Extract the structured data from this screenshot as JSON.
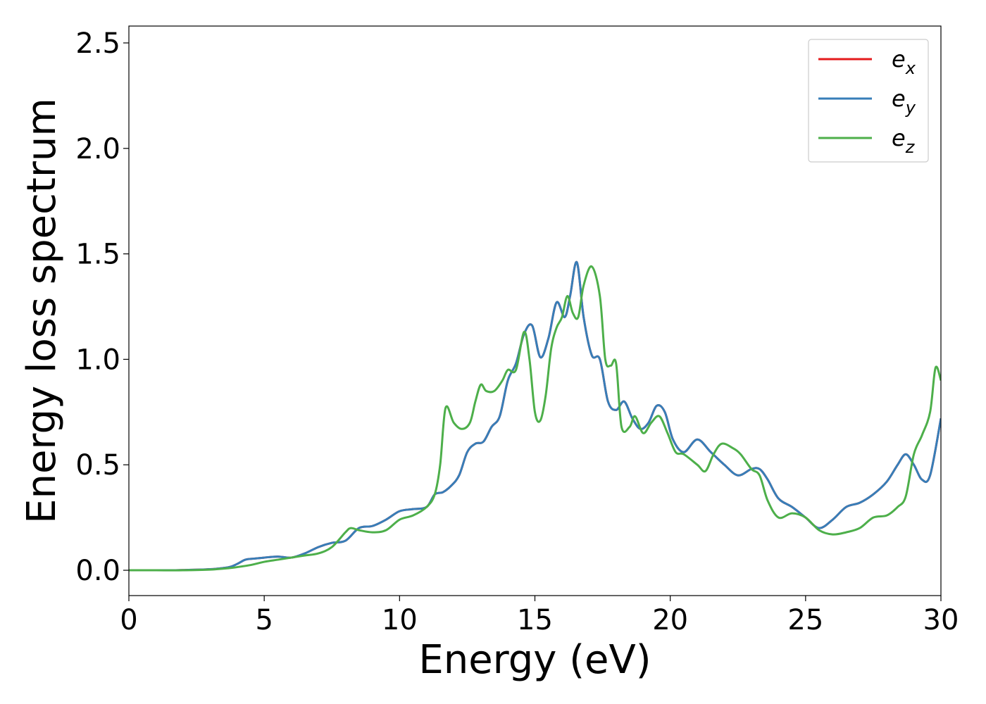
{
  "chart_data": {
    "type": "line",
    "title": "",
    "xlabel": "Energy (eV)",
    "ylabel": "Energy loss spectrum",
    "xlim": [
      0,
      30
    ],
    "ylim": [
      -0.12,
      2.58
    ],
    "xticks": [
      0,
      5,
      10,
      15,
      20,
      25,
      30
    ],
    "yticks": [
      0.0,
      0.5,
      1.0,
      1.5,
      2.0,
      2.5
    ],
    "grid": false,
    "legend_position": "top-right",
    "series": [
      {
        "name": "e",
        "subscript": "x",
        "color": "#e41a1c",
        "x": [
          0,
          1,
          2,
          3,
          3.7,
          4.0,
          4.3,
          4.6,
          5.0,
          5.5,
          6.0,
          6.5,
          7.0,
          7.5,
          8.0,
          8.5,
          9.0,
          9.5,
          10.0,
          10.5,
          11.0,
          11.3,
          11.6,
          11.9,
          12.2,
          12.5,
          12.8,
          13.1,
          13.4,
          13.7,
          14.0,
          14.3,
          14.6,
          14.9,
          15.2,
          15.5,
          15.8,
          16.1,
          16.3,
          16.55,
          16.8,
          17.1,
          17.4,
          17.7,
          18.0,
          18.3,
          18.6,
          18.9,
          19.2,
          19.5,
          19.8,
          20.1,
          20.5,
          21.0,
          21.5,
          22.0,
          22.5,
          23.0,
          23.3,
          23.6,
          24.0,
          24.5,
          25.0,
          25.5,
          26.0,
          26.5,
          27.0,
          27.5,
          28.0,
          28.4,
          28.7,
          29.0,
          29.3,
          29.6,
          30.0
        ],
        "y": [
          0,
          0,
          0.001,
          0.005,
          0.015,
          0.03,
          0.05,
          0.055,
          0.06,
          0.065,
          0.06,
          0.08,
          0.11,
          0.13,
          0.14,
          0.2,
          0.21,
          0.24,
          0.28,
          0.29,
          0.3,
          0.36,
          0.37,
          0.4,
          0.45,
          0.56,
          0.6,
          0.61,
          0.68,
          0.73,
          0.9,
          0.98,
          1.12,
          1.16,
          1.01,
          1.1,
          1.27,
          1.2,
          1.3,
          1.46,
          1.2,
          1.02,
          1.0,
          0.8,
          0.76,
          0.8,
          0.72,
          0.67,
          0.7,
          0.78,
          0.75,
          0.62,
          0.56,
          0.62,
          0.56,
          0.5,
          0.45,
          0.48,
          0.48,
          0.43,
          0.34,
          0.3,
          0.25,
          0.2,
          0.24,
          0.3,
          0.32,
          0.36,
          0.42,
          0.5,
          0.55,
          0.5,
          0.43,
          0.45,
          0.72
        ]
      },
      {
        "name": "e",
        "subscript": "y",
        "color": "#377eb8",
        "x": [
          0,
          1,
          2,
          3,
          3.7,
          4.0,
          4.3,
          4.6,
          5.0,
          5.5,
          6.0,
          6.5,
          7.0,
          7.5,
          8.0,
          8.5,
          9.0,
          9.5,
          10.0,
          10.5,
          11.0,
          11.3,
          11.6,
          11.9,
          12.2,
          12.5,
          12.8,
          13.1,
          13.4,
          13.7,
          14.0,
          14.3,
          14.6,
          14.9,
          15.2,
          15.5,
          15.8,
          16.1,
          16.3,
          16.55,
          16.8,
          17.1,
          17.4,
          17.7,
          18.0,
          18.3,
          18.6,
          18.9,
          19.2,
          19.5,
          19.8,
          20.1,
          20.5,
          21.0,
          21.5,
          22.0,
          22.5,
          23.0,
          23.3,
          23.6,
          24.0,
          24.5,
          25.0,
          25.5,
          26.0,
          26.5,
          27.0,
          27.5,
          28.0,
          28.4,
          28.7,
          29.0,
          29.3,
          29.6,
          30.0
        ],
        "y": [
          0,
          0,
          0.001,
          0.005,
          0.015,
          0.03,
          0.05,
          0.055,
          0.06,
          0.065,
          0.06,
          0.08,
          0.11,
          0.13,
          0.14,
          0.2,
          0.21,
          0.24,
          0.28,
          0.29,
          0.3,
          0.36,
          0.37,
          0.4,
          0.45,
          0.56,
          0.6,
          0.61,
          0.68,
          0.73,
          0.9,
          0.98,
          1.12,
          1.16,
          1.01,
          1.1,
          1.27,
          1.2,
          1.3,
          1.46,
          1.2,
          1.02,
          1.0,
          0.8,
          0.76,
          0.8,
          0.72,
          0.67,
          0.7,
          0.78,
          0.75,
          0.62,
          0.56,
          0.62,
          0.56,
          0.5,
          0.45,
          0.48,
          0.48,
          0.43,
          0.34,
          0.3,
          0.25,
          0.2,
          0.24,
          0.3,
          0.32,
          0.36,
          0.42,
          0.5,
          0.55,
          0.5,
          0.43,
          0.45,
          0.72
        ]
      },
      {
        "name": "e",
        "subscript": "z",
        "color": "#4daf4a",
        "x": [
          0,
          1,
          2,
          3,
          3.7,
          4.0,
          4.5,
          5.0,
          5.5,
          6.0,
          6.5,
          7.0,
          7.5,
          8.0,
          8.2,
          8.5,
          9.0,
          9.5,
          10.0,
          10.5,
          11.0,
          11.3,
          11.5,
          11.7,
          12.0,
          12.3,
          12.6,
          12.8,
          13.0,
          13.2,
          13.5,
          13.8,
          14.0,
          14.3,
          14.6,
          14.8,
          15.0,
          15.2,
          15.4,
          15.6,
          15.8,
          16.0,
          16.2,
          16.4,
          16.6,
          16.8,
          17.1,
          17.4,
          17.6,
          17.8,
          18.0,
          18.2,
          18.5,
          18.7,
          19.0,
          19.3,
          19.6,
          19.9,
          20.2,
          20.5,
          21.0,
          21.3,
          21.6,
          21.9,
          22.3,
          22.6,
          23.0,
          23.3,
          23.6,
          24.0,
          24.5,
          25.0,
          25.5,
          26.0,
          26.5,
          27.0,
          27.5,
          28.0,
          28.4,
          28.7,
          29.0,
          29.3,
          29.6,
          29.8,
          30.0
        ],
        "y": [
          0,
          0,
          0,
          0.003,
          0.01,
          0.015,
          0.025,
          0.04,
          0.05,
          0.06,
          0.07,
          0.08,
          0.11,
          0.18,
          0.2,
          0.19,
          0.18,
          0.19,
          0.24,
          0.26,
          0.3,
          0.36,
          0.5,
          0.77,
          0.7,
          0.67,
          0.7,
          0.8,
          0.88,
          0.85,
          0.85,
          0.9,
          0.95,
          0.95,
          1.13,
          1.0,
          0.75,
          0.71,
          0.83,
          1.05,
          1.15,
          1.2,
          1.3,
          1.22,
          1.2,
          1.35,
          1.44,
          1.3,
          1.0,
          0.97,
          0.98,
          0.68,
          0.68,
          0.73,
          0.65,
          0.7,
          0.73,
          0.65,
          0.56,
          0.55,
          0.5,
          0.47,
          0.55,
          0.6,
          0.58,
          0.55,
          0.48,
          0.45,
          0.33,
          0.25,
          0.27,
          0.25,
          0.19,
          0.17,
          0.18,
          0.2,
          0.25,
          0.26,
          0.3,
          0.35,
          0.55,
          0.64,
          0.75,
          0.96,
          0.9
        ]
      }
    ]
  }
}
